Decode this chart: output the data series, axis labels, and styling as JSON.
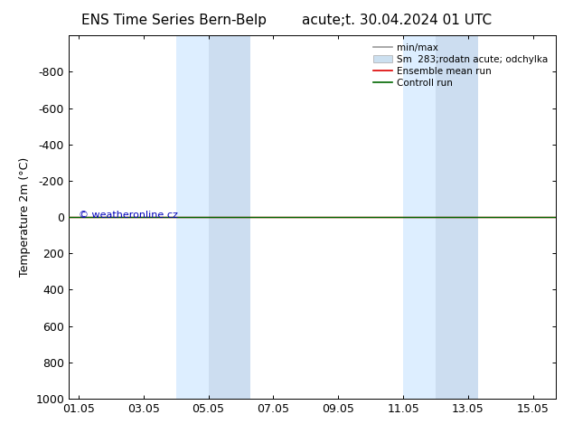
{
  "title_left": "ENS Time Series Bern-Belp",
  "title_right": "acute;t. 30.04.2024 01 UTC",
  "ylabel": "Temperature 2m (°C)",
  "watermark": "© weatheronline.cz",
  "ylim": [
    -1000,
    1000
  ],
  "yticks": [
    -800,
    -600,
    -400,
    -200,
    0,
    200,
    400,
    600,
    800,
    1000
  ],
  "xtick_labels": [
    "01.05",
    "03.05",
    "05.05",
    "07.05",
    "09.05",
    "11.05",
    "13.05",
    "15.05"
  ],
  "xtick_positions": [
    0,
    2,
    4,
    6,
    8,
    10,
    12,
    14
  ],
  "x_min": -0.3,
  "x_max": 14.7,
  "shaded_bands": [
    {
      "x_start": 3.0,
      "x_end": 4.0,
      "color": "#ddeeff"
    },
    {
      "x_start": 4.0,
      "x_end": 5.3,
      "color": "#ccddf0"
    },
    {
      "x_start": 10.0,
      "x_end": 11.0,
      "color": "#ddeeff"
    },
    {
      "x_start": 11.0,
      "x_end": 12.3,
      "color": "#ccddf0"
    }
  ],
  "control_run_y": 0,
  "ensemble_mean_y": 0,
  "background_color": "#ffffff",
  "legend_entries": [
    {
      "label": "min/max",
      "color": "#999999",
      "lw": 1.2,
      "type": "line"
    },
    {
      "label": "Sm  283;rodatn acute; odchylka",
      "facecolor": "#cce0f0",
      "edgecolor": "#aaaaaa",
      "type": "patch"
    },
    {
      "label": "Ensemble mean run",
      "color": "#dd0000",
      "lw": 1.2,
      "type": "line"
    },
    {
      "label": "Controll run",
      "color": "#006600",
      "lw": 1.2,
      "type": "line"
    }
  ],
  "control_run_color": "#006600",
  "ensemble_mean_color": "#dd0000",
  "axis_border_color": "#000000",
  "tick_color": "#000000",
  "font_size_title": 11,
  "font_size_axis": 9,
  "font_size_legend": 7.5,
  "font_size_watermark": 8,
  "font_family": "DejaVu Sans"
}
